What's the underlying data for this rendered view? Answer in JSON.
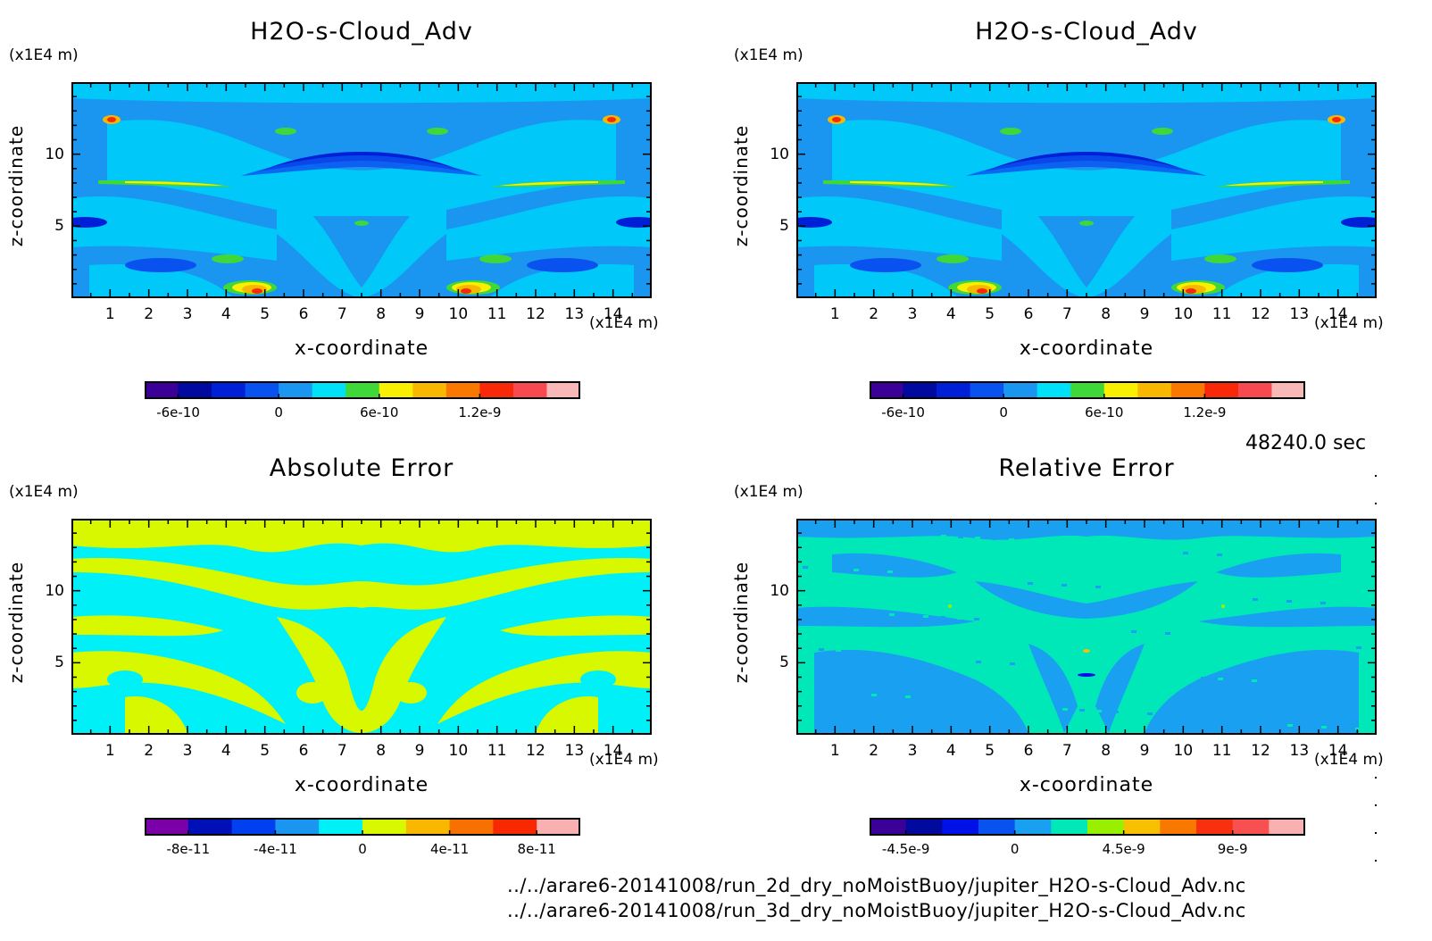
{
  "panels": [
    {
      "id": "p1",
      "title": "H2O-s-Cloud_Adv",
      "y_unit": "(x1E4 m)",
      "x_unit": "(x1E4 m)",
      "xlabel": "x-coordinate",
      "ylabel": "z-coordinate",
      "colorbar": {
        "colors": [
          "#3a0098",
          "#000a9e",
          "#0020d8",
          "#0a52f0",
          "#1a96f0",
          "#00e0f8",
          "#40d838",
          "#f8f000",
          "#f8b800",
          "#f87800",
          "#f82808",
          "#f84850",
          "#f8b8b8"
        ],
        "tick_labels": [
          "-6e-10",
          "0",
          "6e-10",
          "1.2e-9"
        ]
      },
      "colors_key": "p1"
    },
    {
      "id": "p2",
      "title": "H2O-s-Cloud_Adv",
      "y_unit": "(x1E4 m)",
      "x_unit": "(x1E4 m)",
      "xlabel": "x-coordinate",
      "ylabel": "z-coordinate",
      "colorbar": {
        "colors": [
          "#3a0098",
          "#000a9e",
          "#0020d8",
          "#0a52f0",
          "#1a96f0",
          "#00e0f8",
          "#40d838",
          "#f8f000",
          "#f8b800",
          "#f87800",
          "#f82808",
          "#f84850",
          "#f8b8b8"
        ],
        "tick_labels": [
          "-6e-10",
          "0",
          "6e-10",
          "1.2e-9"
        ]
      },
      "colors_key": "p2"
    },
    {
      "id": "p3",
      "title": "Absolute Error",
      "y_unit": "(x1E4 m)",
      "x_unit": "(x1E4 m)",
      "xlabel": "x-coordinate",
      "ylabel": "z-coordinate",
      "colorbar": {
        "colors": [
          "#7a00a8",
          "#0010b8",
          "#0040f0",
          "#1a96f0",
          "#00f0f8",
          "#d8f800",
          "#f8b800",
          "#f87000",
          "#f82800",
          "#f8b0b0"
        ],
        "tick_labels": [
          "-8e-11",
          "-4e-11",
          "0",
          "4e-11",
          "8e-11"
        ]
      },
      "colors_key": "p3"
    },
    {
      "id": "p4",
      "title": "Relative Error",
      "y_unit": "(x1E4 m)",
      "x_unit": "(x1E4 m)",
      "xlabel": "x-coordinate",
      "ylabel": "z-coordinate",
      "colorbar": {
        "colors": [
          "#3a0098",
          "#000a9e",
          "#0010e8",
          "#0a52f0",
          "#1aa0f0",
          "#00e8b8",
          "#98f000",
          "#f8c000",
          "#f87800",
          "#f83010",
          "#f85050",
          "#f8b0b0"
        ],
        "tick_labels": [
          "-4.5e-9",
          "0",
          "4.5e-9",
          "9e-9"
        ]
      },
      "colors_key": "p4"
    }
  ],
  "chart_data": [
    {
      "type": "heatmap",
      "title": "H2O-s-Cloud_Adv",
      "xlabel": "x-coordinate",
      "ylabel": "z-coordinate",
      "x_ticks": [
        1,
        2,
        3,
        4,
        5,
        6,
        7,
        8,
        9,
        10,
        11,
        12,
        13,
        14
      ],
      "y_ticks": [
        5,
        10
      ],
      "xlim": [
        0,
        15
      ],
      "ylim": [
        0,
        15
      ],
      "colorbar_ticks": [
        -6e-10,
        0,
        6e-10,
        1.2e-09
      ]
    },
    {
      "type": "heatmap",
      "title": "H2O-s-Cloud_Adv",
      "xlabel": "x-coordinate",
      "ylabel": "z-coordinate",
      "x_ticks": [
        1,
        2,
        3,
        4,
        5,
        6,
        7,
        8,
        9,
        10,
        11,
        12,
        13,
        14
      ],
      "y_ticks": [
        5,
        10
      ],
      "xlim": [
        0,
        15
      ],
      "ylim": [
        0,
        15
      ],
      "colorbar_ticks": [
        -6e-10,
        0,
        6e-10,
        1.2e-09
      ]
    },
    {
      "type": "heatmap",
      "title": "Absolute Error",
      "xlabel": "x-coordinate",
      "ylabel": "z-coordinate",
      "x_ticks": [
        1,
        2,
        3,
        4,
        5,
        6,
        7,
        8,
        9,
        10,
        11,
        12,
        13,
        14
      ],
      "y_ticks": [
        5,
        10
      ],
      "xlim": [
        0,
        15
      ],
      "ylim": [
        0,
        15
      ],
      "colorbar_ticks": [
        -8e-11,
        -4e-11,
        0,
        4e-11,
        8e-11
      ]
    },
    {
      "type": "heatmap",
      "title": "Relative Error",
      "xlabel": "x-coordinate",
      "ylabel": "z-coordinate",
      "x_ticks": [
        1,
        2,
        3,
        4,
        5,
        6,
        7,
        8,
        9,
        10,
        11,
        12,
        13,
        14
      ],
      "y_ticks": [
        5,
        10
      ],
      "xlim": [
        0,
        15
      ],
      "ylim": [
        0,
        15
      ],
      "colorbar_ticks": [
        -4.5e-09,
        0,
        4.5e-09,
        9e-09
      ]
    }
  ],
  "time_label": "48240.0 sec",
  "files": [
    "../../arare6-20141008/run_2d_dry_noMoistBuoy/jupiter_H2O-s-Cloud_Adv.nc",
    "../../arare6-20141008/run_3d_dry_noMoistBuoy/jupiter_H2O-s-Cloud_Adv.nc"
  ]
}
